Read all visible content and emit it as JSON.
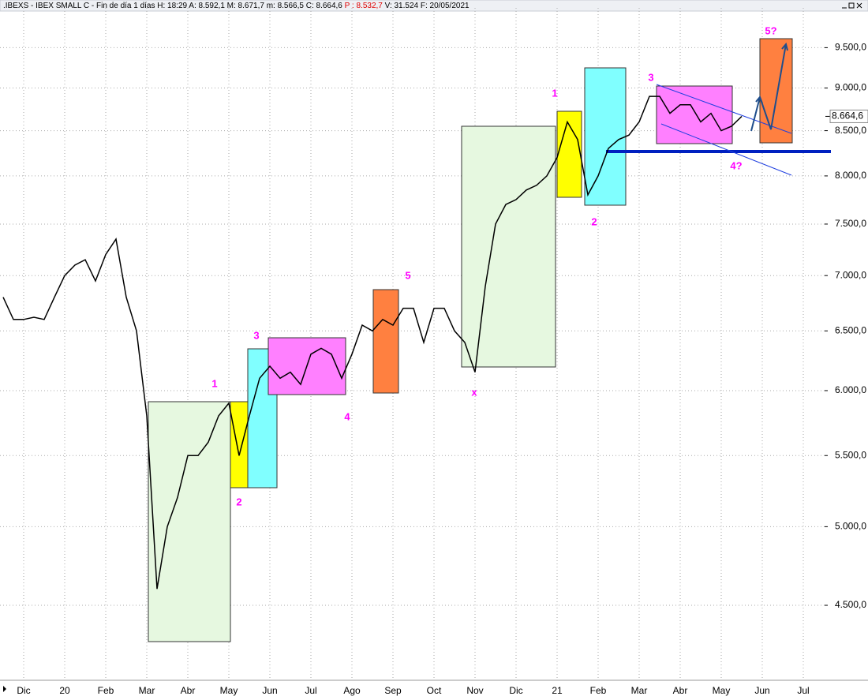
{
  "header": {
    "parts": [
      ".IBEXS - IBEX SMALL C - Fin de día 1 días  H: 18:29  A: 8.592,1  M: 8.671,7  m: 8.566,5  C: 8.664,6",
      "P : 8.532,7",
      "V: 31.524  F: 20/05/2021"
    ]
  },
  "chart_data": {
    "type": "line",
    "log_scale": true,
    "grid": true,
    "color": "#000000",
    "categories": [
      null,
      null,
      "Dic",
      null,
      null,
      null,
      "20",
      null,
      null,
      null,
      "Feb",
      null,
      null,
      null,
      "Mar",
      null,
      null,
      null,
      "Abr",
      null,
      null,
      null,
      "May",
      null,
      null,
      null,
      "Jun",
      null,
      null,
      null,
      "Jul",
      null,
      null,
      null,
      "Ago",
      null,
      null,
      null,
      "Sep",
      null,
      null,
      null,
      "Oct",
      null,
      null,
      null,
      "Nov",
      null,
      null,
      null,
      "Dic",
      null,
      null,
      null,
      "21",
      null,
      null,
      null,
      "Feb",
      null,
      null,
      null,
      "Mar",
      null,
      null,
      null,
      "Abr",
      null,
      null,
      null,
      "May",
      null,
      null,
      null,
      "Jun",
      null,
      null,
      null,
      "Jul",
      null
    ],
    "values": [
      6800,
      6600,
      6600,
      6620,
      6600,
      6800,
      7000,
      7100,
      7150,
      6950,
      7200,
      7350,
      6800,
      6500,
      5800,
      4600,
      5000,
      5200,
      5500,
      5500,
      5600,
      5800,
      5900,
      5500,
      5800,
      6100,
      6200,
      6100,
      6150,
      6050,
      6300,
      6350,
      6300,
      6100,
      6300,
      6550,
      6500,
      6600,
      6550,
      6700,
      6700,
      6400,
      6700,
      6700,
      6500,
      6400,
      6150,
      6900,
      7500,
      7700,
      7750,
      7850,
      7900,
      8000,
      8200,
      8600,
      8400,
      7800,
      8000,
      8300,
      8400,
      8450,
      8600,
      8900,
      8900,
      8700,
      8800,
      8800,
      8600,
      8700,
      8500,
      8550,
      8664.6,
      null,
      null,
      null,
      null,
      null,
      null,
      null
    ],
    "ylim": [
      4070,
      10020
    ],
    "yticks": [
      {
        "value": 4500,
        "label": "4.500,0"
      },
      {
        "value": 5000,
        "label": "5.000,0"
      },
      {
        "value": 5500,
        "label": "5.500,0"
      },
      {
        "value": 6000,
        "label": "6.000,0"
      },
      {
        "value": 6500,
        "label": "6.500,0"
      },
      {
        "value": 7000,
        "label": "7.000,0"
      },
      {
        "value": 7500,
        "label": "7.500,0"
      },
      {
        "value": 8000,
        "label": "8.000,0"
      },
      {
        "value": 8500,
        "label": "8.500,0"
      },
      {
        "value": 9000,
        "label": "9.000,0"
      },
      {
        "value": 9500,
        "label": "9.500,0"
      }
    ],
    "current_price": {
      "value": 8664.6,
      "label": "8.664,6"
    },
    "annotations": [
      "1",
      "2",
      "3",
      "4",
      "5",
      "x",
      "1",
      "2",
      "3",
      "4?",
      "5?"
    ]
  }
}
